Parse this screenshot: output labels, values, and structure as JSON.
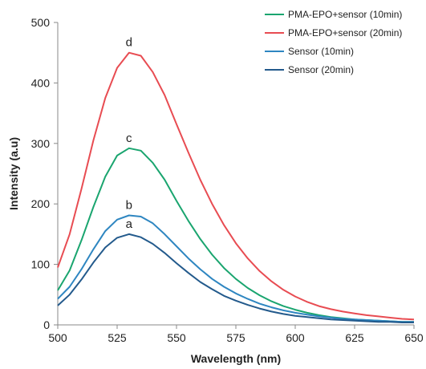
{
  "chart_data": {
    "type": "line",
    "title": "",
    "xlabel": "Wavelength (nm)",
    "ylabel": "Intensity (a.u)",
    "xlim": [
      500,
      650
    ],
    "ylim": [
      0,
      500
    ],
    "xticks": [
      500,
      525,
      550,
      575,
      600,
      625,
      650
    ],
    "yticks": [
      0,
      100,
      200,
      300,
      400,
      500
    ],
    "grid": false,
    "legend_position": "top-right",
    "x": [
      500,
      505,
      510,
      515,
      520,
      525,
      530,
      535,
      540,
      545,
      550,
      555,
      560,
      565,
      570,
      575,
      580,
      585,
      590,
      595,
      600,
      605,
      610,
      615,
      620,
      625,
      630,
      635,
      640,
      645,
      650
    ],
    "series": [
      {
        "name": "PMA-EPO+sensor (10min)",
        "color": "#1aa56f",
        "label": "c",
        "values": [
          57,
          90,
          140,
          195,
          245,
          280,
          292,
          288,
          268,
          240,
          205,
          172,
          142,
          116,
          94,
          76,
          61,
          49,
          39,
          31,
          25,
          20,
          16,
          13,
          11,
          9,
          8,
          7,
          6,
          5,
          5
        ]
      },
      {
        "name": "PMA-EPO+sensor (20min)",
        "color": "#e84c52",
        "label": "d",
        "values": [
          95,
          150,
          225,
          305,
          375,
          425,
          450,
          445,
          418,
          380,
          332,
          285,
          240,
          200,
          165,
          135,
          110,
          89,
          72,
          58,
          47,
          38,
          31,
          26,
          22,
          19,
          16,
          14,
          12,
          10,
          9
        ]
      },
      {
        "name": "Sensor (10min)",
        "color": "#2e86c1",
        "label": "b",
        "values": [
          43,
          63,
          92,
          125,
          155,
          174,
          181,
          179,
          168,
          150,
          130,
          110,
          92,
          76,
          63,
          52,
          43,
          35,
          29,
          24,
          20,
          17,
          14,
          12,
          10,
          9,
          8,
          7,
          6,
          5,
          5
        ]
      },
      {
        "name": "Sensor (20min)",
        "color": "#235a8c",
        "label": "a",
        "values": [
          32,
          50,
          75,
          103,
          128,
          144,
          150,
          145,
          134,
          119,
          102,
          86,
          71,
          59,
          48,
          40,
          33,
          27,
          22,
          18,
          15,
          13,
          11,
          9,
          8,
          7,
          6,
          5,
          5,
          4,
          4
        ]
      }
    ]
  }
}
